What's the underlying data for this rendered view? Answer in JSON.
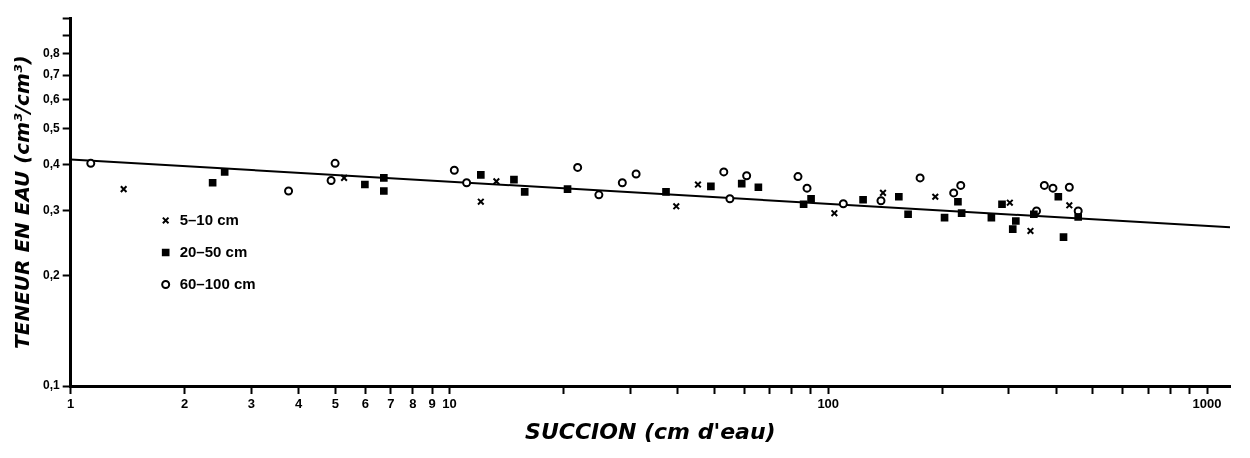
{
  "chart_data": {
    "type": "scatter",
    "xlabel": "SUCCION (cm d'eau)",
    "ylabel": "TENEUR EN EAU (cm³/cm³)",
    "log": "xy",
    "grid": false,
    "legend": "left",
    "xlim": [
      1,
      1150
    ],
    "xticks": [
      1,
      2,
      3,
      4,
      5,
      6,
      7,
      8,
      9,
      10,
      {
        "value": 20,
        "label": null
      },
      {
        "value": 30,
        "label": null
      },
      {
        "value": 40,
        "label": null
      },
      {
        "value": 50,
        "label": null
      },
      {
        "value": 60,
        "label": null
      },
      {
        "value": 70,
        "label": null
      },
      {
        "value": 80,
        "label": null
      },
      {
        "value": 90,
        "label": null
      },
      100,
      {
        "value": 200,
        "label": null
      },
      {
        "value": 300,
        "label": null
      },
      {
        "value": 400,
        "label": null
      },
      {
        "value": 500,
        "label": null
      },
      {
        "value": 600,
        "label": null
      },
      {
        "value": 700,
        "label": null
      },
      {
        "value": 800,
        "label": null
      },
      {
        "value": 900,
        "label": null
      },
      1000
    ],
    "ylim": [
      0.1,
      1
    ],
    "yticks": [
      {
        "value": 0.1,
        "label": "0,1"
      },
      {
        "value": 0.2,
        "label": "0,2"
      },
      {
        "value": 0.3,
        "label": "0,3"
      },
      {
        "value": 0.4,
        "label": "0,4"
      },
      {
        "value": 0.5,
        "label": "0,5"
      },
      {
        "value": 0.6,
        "label": "0,6"
      },
      {
        "value": 0.7,
        "label": "0,7"
      },
      {
        "value": 0.8,
        "label": "0,8"
      },
      {
        "value": 0.9,
        "label": null
      },
      {
        "value": 1,
        "label": null
      }
    ],
    "series": [
      {
        "name": "5–10 cm",
        "color": "#000000",
        "marker": "cross",
        "x": [
          1.38,
          5.27,
          12.1,
          13.3,
          39.7,
          45.3,
          103.8,
          139.5,
          191.7,
          301.6,
          341.9,
          433
        ],
        "values": [
          0.343,
          0.368,
          0.317,
          0.36,
          0.308,
          0.353,
          0.295,
          0.335,
          0.327,
          0.315,
          0.264,
          0.31
        ]
      },
      {
        "name": "20–50 cm",
        "color": "#000000",
        "marker": "square",
        "x": [
          2.37,
          2.55,
          5.98,
          6.71,
          6.71,
          12.1,
          14.8,
          15.8,
          20.5,
          37.3,
          49,
          59.1,
          65.4,
          86.1,
          90.1,
          123.6,
          153.6,
          162.5,
          202.8,
          220,
          225,
          269.6,
          287.6,
          307,
          312.8,
          349,
          405,
          418,
          457
        ],
        "values": [
          0.357,
          0.382,
          0.353,
          0.368,
          0.339,
          0.375,
          0.364,
          0.337,
          0.343,
          0.337,
          0.349,
          0.355,
          0.347,
          0.312,
          0.323,
          0.321,
          0.327,
          0.293,
          0.287,
          0.317,
          0.295,
          0.287,
          0.312,
          0.267,
          0.281,
          0.293,
          0.327,
          0.254,
          0.288
        ]
      },
      {
        "name": "60–100 cm",
        "color": "#000000",
        "marker": "circle",
        "x": [
          1.13,
          3.76,
          4.99,
          4.87,
          10.3,
          11.1,
          21.8,
          24.8,
          28.6,
          31.1,
          53,
          55,
          60.9,
          83.2,
          87.9,
          109.6,
          137.8,
          174.8,
          214.4,
          223.8,
          354.7,
          372,
          392,
          433,
          457
        ],
        "values": [
          0.403,
          0.339,
          0.403,
          0.362,
          0.386,
          0.357,
          0.393,
          0.331,
          0.357,
          0.377,
          0.382,
          0.323,
          0.373,
          0.371,
          0.345,
          0.313,
          0.319,
          0.368,
          0.335,
          0.351,
          0.299,
          0.351,
          0.345,
          0.347,
          0.299
        ]
      },
      {
        "type": "line",
        "color": "#000000",
        "marker": "none",
        "line_style": "solid",
        "x": [
          1,
          1150
        ],
        "values": [
          0.413,
          0.27
        ]
      }
    ]
  }
}
